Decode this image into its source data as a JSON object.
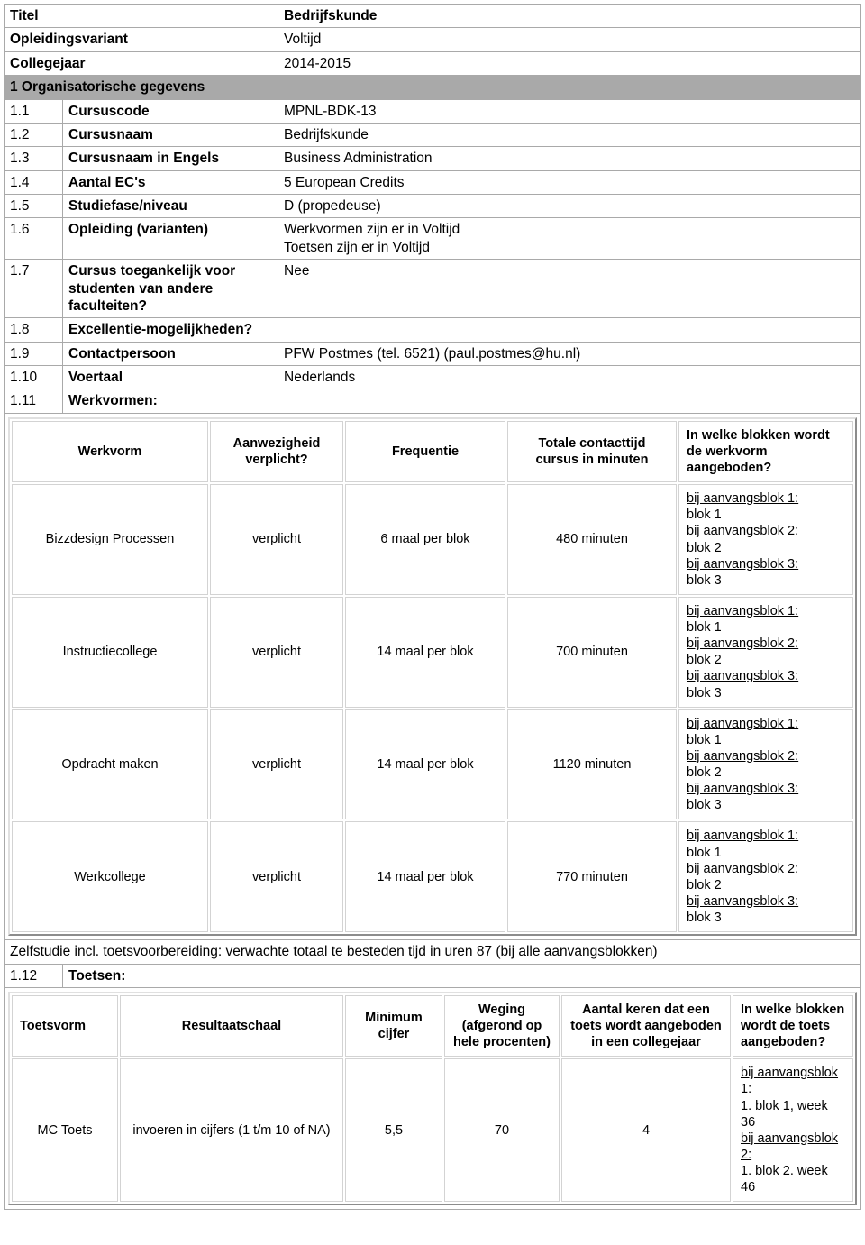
{
  "colors": {
    "section_bg": "#a9a9a9",
    "outer_border": "#a9a9a9",
    "inner_border": "#d3d3d3",
    "text": "#000000",
    "bg": "#ffffff"
  },
  "fonts": {
    "family": "Arial",
    "title_pt": 30,
    "section_pt": 22,
    "body_pt": 15.5,
    "inner_pt": 14.5
  },
  "header": {
    "titel_label": "Titel",
    "titel_value": "Bedrijfskunde",
    "opleidingsvariant_label": "Opleidingsvariant",
    "opleidingsvariant_value": "Voltijd",
    "collegejaar_label": "Collegejaar",
    "collegejaar_value": "2014-2015"
  },
  "section1": {
    "title": "1 Organisatorische gegevens",
    "rows": [
      {
        "n": "1.1",
        "label": "Cursuscode",
        "value": "MPNL-BDK-13"
      },
      {
        "n": "1.2",
        "label": "Cursusnaam",
        "value": "Bedrijfskunde"
      },
      {
        "n": "1.3",
        "label": "Cursusnaam in Engels",
        "value": "Business Administration"
      },
      {
        "n": "1.4",
        "label": "Aantal EC's",
        "value": "5 European Credits"
      },
      {
        "n": "1.5",
        "label": "Studiefase/niveau",
        "value": "D (propedeuse)"
      },
      {
        "n": "1.6",
        "label": "Opleiding (varianten)",
        "value": "Werkvormen zijn er in Voltijd\nToetsen zijn er in Voltijd"
      },
      {
        "n": "1.7",
        "label": "Cursus toegankelijk voor studenten van andere faculteiten?",
        "value": "Nee"
      },
      {
        "n": "1.8",
        "label": "Excellentie-mogelijkheden?",
        "value": ""
      },
      {
        "n": "1.9",
        "label": "Contactpersoon",
        "value": "PFW Postmes (tel. 6521) (paul.postmes@hu.nl)"
      },
      {
        "n": "1.10",
        "label": "Voertaal",
        "value": "Nederlands"
      },
      {
        "n": "1.11",
        "label": "Werkvormen:",
        "value": null
      },
      {
        "n": "1.12",
        "label": "Toetsen:",
        "value": null
      }
    ]
  },
  "werkvormen": {
    "columns": {
      "c1": "Werkvorm",
      "c2": "Aanwezigheid verplicht?",
      "c3": "Frequentie",
      "c4": "Totale contacttijd cursus in minuten",
      "c5": "In welke blokken wordt de werkvorm aangeboden?"
    },
    "block_text": "bij aanvangsblok 1:\nblok 1\nbij aanvangsblok 2:\nblok 2\nbij aanvangsblok 3:\nblok 3",
    "rows": [
      {
        "name": "Bizzdesign Processen",
        "mand": "verplicht",
        "freq": "6 maal per blok",
        "mins": "480 minuten"
      },
      {
        "name": "Instructiecollege",
        "mand": "verplicht",
        "freq": "14 maal per blok",
        "mins": "700 minuten"
      },
      {
        "name": "Opdracht maken",
        "mand": "verplicht",
        "freq": "14 maal per blok",
        "mins": "1120 minuten"
      },
      {
        "name": "Werkcollege",
        "mand": "verplicht",
        "freq": "14 maal per blok",
        "mins": "770 minuten"
      }
    ],
    "selfstudy_label": "Zelfstudie incl. toetsvoorbereiding",
    "selfstudy_rest": ": verwachte totaal te besteden tijd in uren 87 (bij alle aanvangsblokken)"
  },
  "toetsen": {
    "columns": {
      "c1": "Toetsvorm",
      "c2": "Resultaatschaal",
      "c3": "Minimum cijfer",
      "c4": "Weging (afgerond op hele procenten)",
      "c5": "Aantal keren dat een toets wordt aangeboden in een collegejaar",
      "c6": "In welke blokken wordt de toets aangeboden?"
    },
    "rows": [
      {
        "vorm": "MC Toets",
        "schaal": "invoeren in cijfers (1 t/m 10 of NA)",
        "min": "5,5",
        "weging": "70",
        "keren": "4",
        "blokken": "bij aanvangsblok 1:\n1. blok 1, week 36\nbij aanvangsblok 2:\n1. blok 2. week 46"
      }
    ]
  }
}
